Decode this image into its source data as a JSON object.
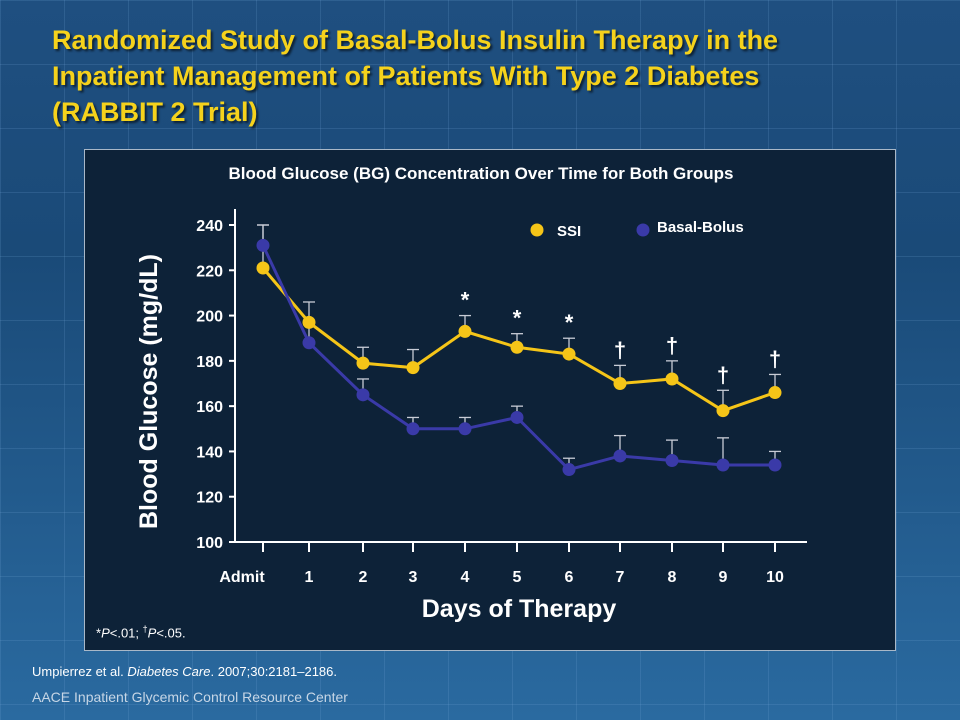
{
  "slide": {
    "title_lines": [
      "Randomized Study of Basal-Bolus Insulin Therapy in the",
      "Inpatient Management of Patients With Type 2 Diabetes",
      "(RABBIT 2 Trial)"
    ],
    "citation_authors": "Umpierrez et al. ",
    "citation_journal": "Diabetes Care",
    "citation_rest": ". 2007;30:2181–2186.",
    "footer_brand": "AACE Inpatient Glycemic Control Resource Center",
    "footnote_p1": "P",
    "footnote_mid": "<.01; ",
    "footnote_dagger": "†",
    "footnote_p2": "P",
    "footnote_end": "<.05.",
    "footnote_star": "*"
  },
  "colors": {
    "ssi": "#f5c518",
    "basal_bolus": "#3a3aa8",
    "title": "#f5d21c",
    "axis": "#ffffff"
  },
  "chart_data": {
    "type": "line",
    "title": "Blood Glucose (BG) Concentration Over Time for Both Groups",
    "xlabel": "Days of Therapy",
    "ylabel": "Blood Glucose (mg/dL)",
    "categories": [
      "Admit",
      "1",
      "2",
      "3",
      "4",
      "5",
      "6",
      "7",
      "8",
      "9",
      "10"
    ],
    "ylim": [
      100,
      240
    ],
    "yticks": [
      100,
      120,
      140,
      160,
      180,
      200,
      220,
      240
    ],
    "legend_position": "top-right",
    "series": [
      {
        "name": "SSI",
        "color": "#f5c518",
        "values": [
          221,
          197,
          179,
          177,
          193,
          186,
          183,
          170,
          172,
          158,
          166
        ],
        "error_upper": [
          240,
          206,
          186,
          185,
          200,
          192,
          190,
          178,
          180,
          167,
          174
        ]
      },
      {
        "name": "Basal-Bolus",
        "color": "#3a3aa8",
        "values": [
          231,
          188,
          165,
          150,
          150,
          155,
          132,
          138,
          136,
          134,
          134
        ],
        "error_upper": [
          240,
          197,
          172,
          155,
          155,
          160,
          137,
          147,
          145,
          146,
          140
        ]
      }
    ],
    "annotations": [
      {
        "category": "4",
        "symbol": "*"
      },
      {
        "category": "5",
        "symbol": "*"
      },
      {
        "category": "6",
        "symbol": "*"
      },
      {
        "category": "7",
        "symbol": "†"
      },
      {
        "category": "8",
        "symbol": "†"
      },
      {
        "category": "9",
        "symbol": "†"
      },
      {
        "category": "10",
        "symbol": "†"
      }
    ]
  }
}
